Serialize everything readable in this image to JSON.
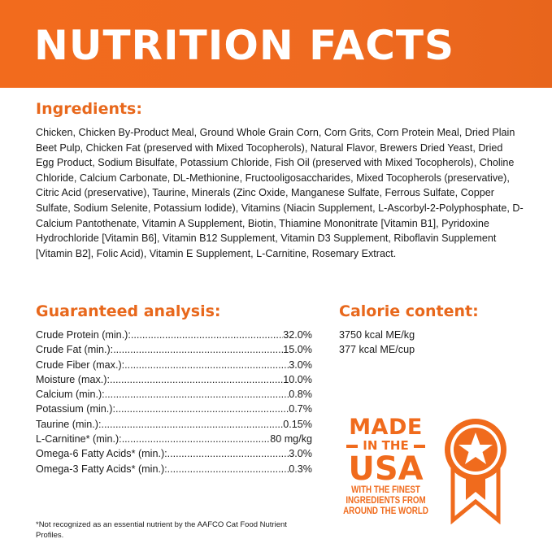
{
  "title": "NUTRITION FACTS",
  "colors": {
    "accent": "#ef6a1d"
  },
  "ingredients": {
    "heading": "Ingredients:",
    "text": "Chicken, Chicken By-Product Meal, Ground Whole Grain Corn, Corn Grits, Corn Protein Meal, Dried Plain Beet Pulp, Chicken Fat (preserved with Mixed Tocopherols), Natural Flavor, Brewers Dried Yeast, Dried Egg Product, Sodium Bisulfate, Potassium Chloride, Fish Oil (preserved with Mixed Tocopherols), Choline Chloride, Calcium Carbonate, DL-Methionine, Fructooligosaccharides, Mixed Tocopherols (preservative), Citric Acid (preservative), Taurine, Minerals (Zinc Oxide, Manganese Sulfate, Ferrous Sulfate, Copper Sulfate, Sodium Selenite, Potassium Iodide), Vitamins (Niacin Supplement, L-Ascorbyl-2-Polyphosphate, D-Calcium Pantothenate, Vitamin A Supplement, Biotin, Thiamine Mononitrate [Vitamin B1], Pyridoxine Hydrochloride [Vitamin B6], Vitamin B12 Supplement, Vitamin D3 Supplement, Riboflavin Supplement [Vitamin B2], Folic Acid), Vitamin E Supplement, L-Carnitine, Rosemary Extract."
  },
  "analysis": {
    "heading": "Guaranteed analysis:",
    "rows": [
      {
        "label": "Crude Protein (min.):",
        "value": "32.0%"
      },
      {
        "label": "Crude Fat (min.):",
        "value": "15.0%"
      },
      {
        "label": "Crude Fiber (max.):",
        "value": "3.0%"
      },
      {
        "label": "Moisture (max.):",
        "value": "10.0%"
      },
      {
        "label": "Calcium (min.):",
        "value": "0.8%"
      },
      {
        "label": "Potassium (min.):",
        "value": "0.7%"
      },
      {
        "label": "Taurine (min.):",
        "value": "0.15%"
      },
      {
        "label": "L-Carnitine* (min.):",
        "value": "80 mg/kg"
      },
      {
        "label": "Omega-6 Fatty Acids* (min.):",
        "value": "3.0%"
      },
      {
        "label": "Omega-3 Fatty Acids* (min.):",
        "value": "0.3%"
      }
    ]
  },
  "calorie": {
    "heading": "Calorie content:",
    "lines": [
      "3750 kcal ME/kg",
      "377 kcal ME/cup"
    ]
  },
  "badge": {
    "made": "MADE",
    "in_the": "IN THE",
    "usa": "USA",
    "sub": [
      "WITH THE FINEST",
      "INGREDIENTS FROM",
      "AROUND THE WORLD"
    ],
    "icon": "award-ribbon-star-icon"
  },
  "footnote": "*Not recognized as an essential nutrient by the AAFCO Cat Food Nutrient Profiles."
}
